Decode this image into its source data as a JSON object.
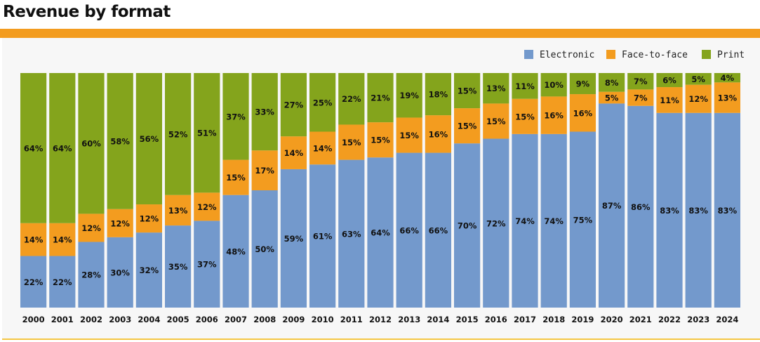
{
  "title": "Revenue by format",
  "colors": {
    "Electronic": "#7399cc",
    "Face-to-face": "#f39c1f",
    "Print": "#84a41c",
    "accent": "#f39c1f"
  },
  "chart_data": {
    "type": "bar",
    "stacked": true,
    "title": "Revenue by format",
    "xlabel": "",
    "ylabel": "",
    "ylim": [
      0,
      100
    ],
    "legend_position": "top-right",
    "categories": [
      "2000",
      "2001",
      "2002",
      "2003",
      "2004",
      "2005",
      "2006",
      "2007",
      "2008",
      "2009",
      "2010",
      "2011",
      "2012",
      "2013",
      "2014",
      "2015",
      "2016",
      "2017",
      "2018",
      "2019",
      "2020",
      "2021",
      "2022",
      "2023",
      "2024"
    ],
    "series": [
      {
        "name": "Electronic",
        "values": [
          22,
          22,
          28,
          30,
          32,
          35,
          37,
          48,
          50,
          59,
          61,
          63,
          64,
          66,
          66,
          70,
          72,
          74,
          74,
          75,
          87,
          86,
          83,
          83,
          83
        ]
      },
      {
        "name": "Face-to-face",
        "values": [
          14,
          14,
          12,
          12,
          12,
          13,
          12,
          15,
          17,
          14,
          14,
          15,
          15,
          15,
          16,
          15,
          15,
          15,
          16,
          16,
          5,
          7,
          11,
          12,
          13
        ]
      },
      {
        "name": "Print",
        "values": [
          64,
          64,
          60,
          58,
          56,
          52,
          51,
          37,
          33,
          27,
          25,
          22,
          21,
          19,
          18,
          15,
          13,
          11,
          10,
          9,
          8,
          7,
          6,
          5,
          4
        ]
      }
    ],
    "value_suffix": "%"
  }
}
